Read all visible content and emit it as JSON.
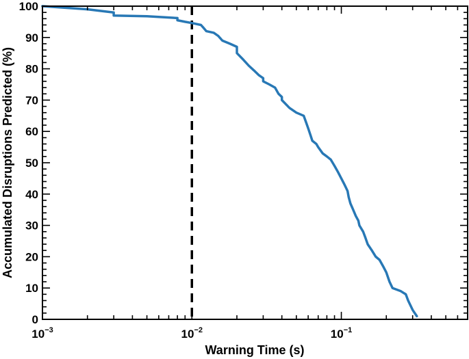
{
  "chart_data": {
    "type": "line",
    "title": "",
    "xlabel": "Warning Time (s)",
    "ylabel": "Accumulated Disruptions Predicted (%)",
    "xscale": "log",
    "xlim": [
      0.001,
      0.7
    ],
    "ylim": [
      0,
      100
    ],
    "x_ticks": [
      {
        "value": 0.001,
        "base": "10",
        "exp": "−3"
      },
      {
        "value": 0.01,
        "base": "10",
        "exp": "−2"
      },
      {
        "value": 0.1,
        "base": "10",
        "exp": "−1"
      }
    ],
    "y_ticks": [
      "0",
      "10",
      "20",
      "30",
      "40",
      "50",
      "60",
      "70",
      "80",
      "90",
      "100"
    ],
    "grid": false,
    "legend": "none",
    "reference_line": {
      "x": 0.01,
      "style": "dashed",
      "color": "#000000"
    },
    "series": [
      {
        "color": "#2878b5",
        "x": [
          0.001,
          0.002,
          0.003,
          0.003,
          0.005,
          0.008,
          0.008,
          0.009,
          0.01,
          0.0115,
          0.012,
          0.0125,
          0.014,
          0.015,
          0.016,
          0.018,
          0.02,
          0.02,
          0.022,
          0.024,
          0.026,
          0.028,
          0.03,
          0.03,
          0.033,
          0.036,
          0.038,
          0.04,
          0.04,
          0.045,
          0.05,
          0.056,
          0.058,
          0.06,
          0.062,
          0.064,
          0.068,
          0.07,
          0.075,
          0.08,
          0.085,
          0.09,
          0.095,
          0.1,
          0.105,
          0.11,
          0.112,
          0.115,
          0.12,
          0.125,
          0.13,
          0.132,
          0.14,
          0.145,
          0.15,
          0.16,
          0.17,
          0.18,
          0.19,
          0.2,
          0.21,
          0.22,
          0.25,
          0.27,
          0.28,
          0.3,
          0.32
        ],
        "y": [
          100,
          99,
          98,
          97,
          96.8,
          96.2,
          95.5,
          95,
          94.6,
          94,
          93,
          92,
          91.5,
          90.5,
          89,
          88,
          87,
          85,
          83,
          81,
          79.5,
          78,
          77,
          76,
          75,
          74,
          72,
          71,
          70,
          67.5,
          66,
          65,
          63,
          61,
          59,
          57,
          56,
          55,
          53,
          52,
          51,
          49,
          47,
          45,
          43,
          41,
          39,
          37,
          35,
          33,
          31.5,
          30,
          28,
          26,
          24,
          22,
          20,
          19,
          17,
          15,
          12,
          10,
          9,
          8,
          6,
          3,
          1
        ]
      }
    ]
  }
}
